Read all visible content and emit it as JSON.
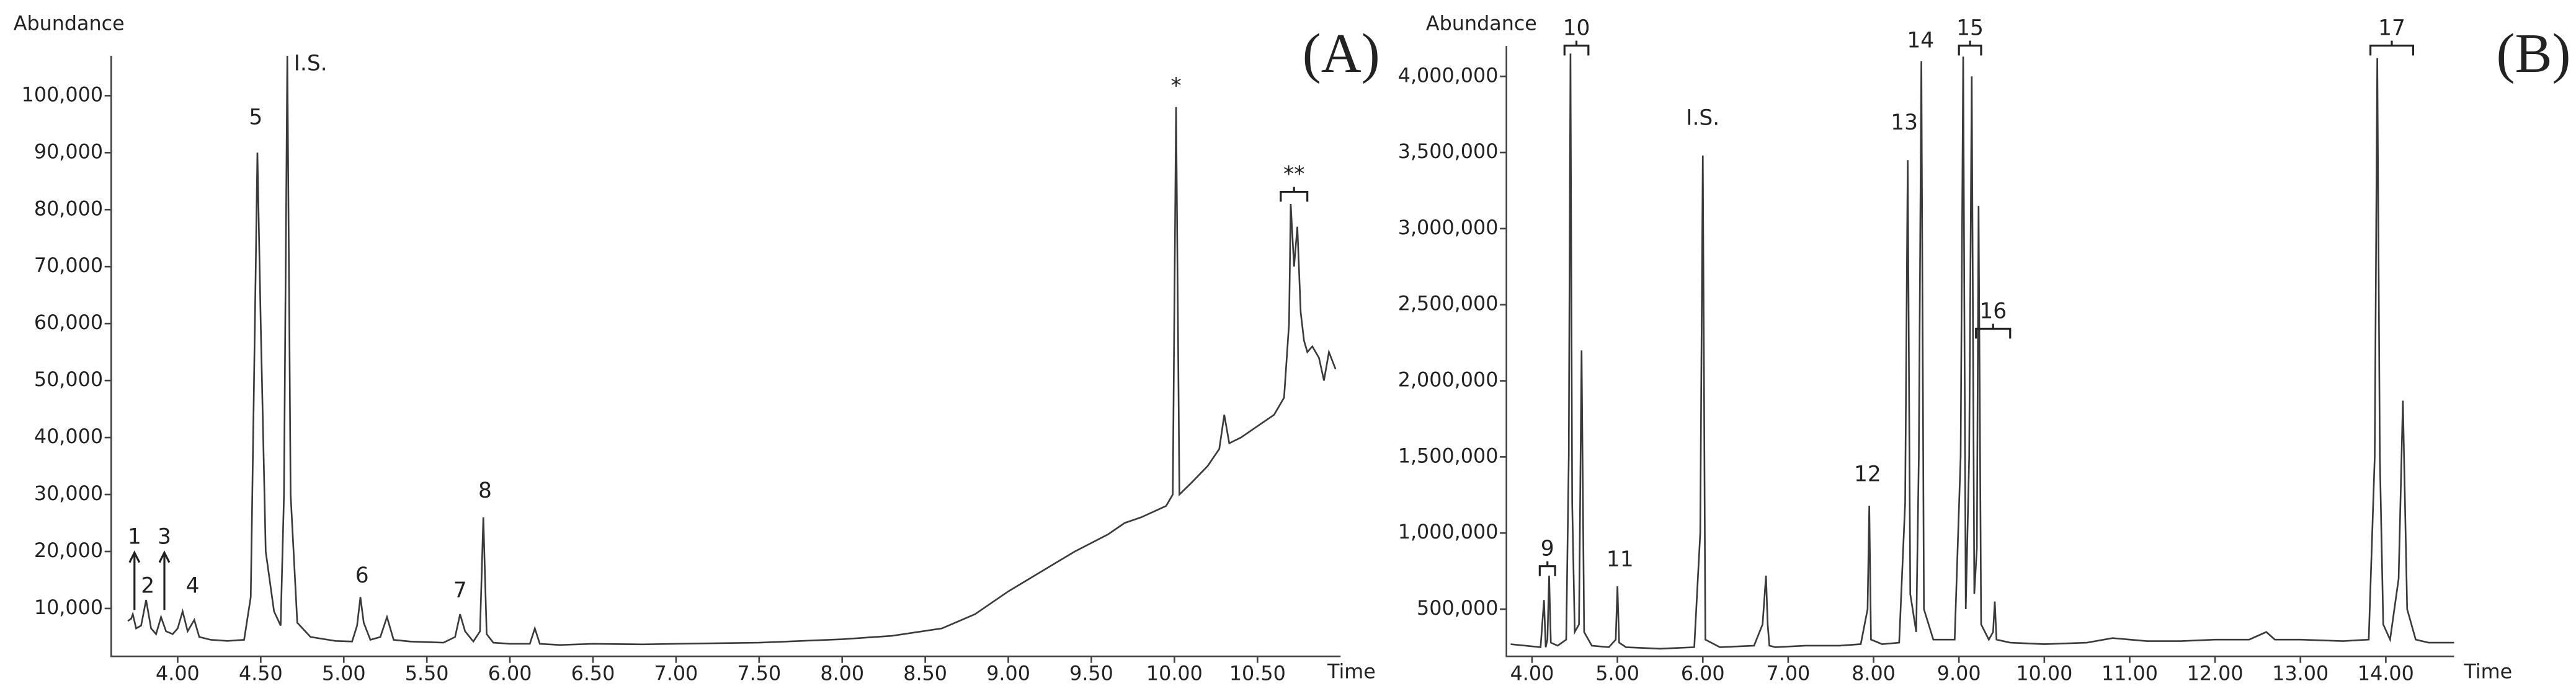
{
  "chart_data": [
    {
      "type": "line",
      "panel_label": "(A)",
      "y_label": "Abundance",
      "x_label": "Time",
      "xlim": [
        3.6,
        11.0
      ],
      "ylim": [
        1600,
        107000
      ],
      "xticks": [
        {
          "value": 4,
          "label": "4.00"
        },
        {
          "value": 4.5,
          "label": "4.50"
        },
        {
          "value": 5,
          "label": "5.00"
        },
        {
          "value": 5.5,
          "label": "5.50"
        },
        {
          "value": 6,
          "label": "6.00"
        },
        {
          "value": 6.5,
          "label": "6.50"
        },
        {
          "value": 7,
          "label": "7.00"
        },
        {
          "value": 7.5,
          "label": "7.50"
        },
        {
          "value": 8,
          "label": "8.00"
        },
        {
          "value": 8.5,
          "label": "8.50"
        },
        {
          "value": 9,
          "label": "9.00"
        },
        {
          "value": 9.5,
          "label": "9.50"
        },
        {
          "value": 10,
          "label": "10.00"
        },
        {
          "value": 10.5,
          "label": "10.50"
        }
      ],
      "yticks": [
        {
          "value": 10000,
          "label": "10,000"
        },
        {
          "value": 20000,
          "label": "20,000"
        },
        {
          "value": 30000,
          "label": "30,000"
        },
        {
          "value": 40000,
          "label": "40,000"
        },
        {
          "value": 50000,
          "label": "50,000"
        },
        {
          "value": 60000,
          "label": "60,000"
        },
        {
          "value": 70000,
          "label": "70,000"
        },
        {
          "value": 80000,
          "label": "80,000"
        },
        {
          "value": 90000,
          "label": "90,000"
        },
        {
          "value": 100000,
          "label": "100,000"
        }
      ],
      "annotations": [
        "1",
        "2",
        "3",
        "4",
        "5",
        "I.S.",
        "6",
        "7",
        "8",
        "*",
        "**"
      ],
      "series": [
        {
          "color": "#3a3a3a",
          "x": [
            3.7,
            3.72,
            3.73,
            3.75,
            3.78,
            3.81,
            3.84,
            3.87,
            3.9,
            3.93,
            3.97,
            4.0,
            4.03,
            4.06,
            4.1,
            4.13,
            4.2,
            4.3,
            4.4,
            4.44,
            4.47,
            4.48,
            4.5,
            4.53,
            4.58,
            4.62,
            4.64,
            4.66,
            4.68,
            4.72,
            4.8,
            4.95,
            5.05,
            5.08,
            5.1,
            5.12,
            5.16,
            5.22,
            5.26,
            5.3,
            5.4,
            5.6,
            5.67,
            5.7,
            5.73,
            5.78,
            5.82,
            5.84,
            5.86,
            5.9,
            6.0,
            6.12,
            6.15,
            6.18,
            6.3,
            6.5,
            6.8,
            7.0,
            7.5,
            8.0,
            8.3,
            8.6,
            8.8,
            9.0,
            9.2,
            9.4,
            9.6,
            9.7,
            9.8,
            9.95,
            9.99,
            10.01,
            10.03,
            10.1,
            10.2,
            10.27,
            10.3,
            10.33,
            10.4,
            10.5,
            10.6,
            10.66,
            10.69,
            10.7,
            10.72,
            10.74,
            10.76,
            10.78,
            10.8,
            10.83,
            10.87,
            10.9,
            10.93,
            10.97
          ],
          "values": [
            7800,
            8200,
            9000,
            6500,
            7000,
            11500,
            6500,
            5500,
            8500,
            6000,
            5500,
            6500,
            9500,
            6000,
            8000,
            5000,
            4500,
            4300,
            4500,
            12000,
            70000,
            90000,
            60000,
            20000,
            9500,
            7000,
            30000,
            107000,
            30000,
            7500,
            5000,
            4300,
            4200,
            7000,
            12000,
            7500,
            4500,
            5000,
            8500,
            4500,
            4200,
            4000,
            5000,
            9000,
            6000,
            4200,
            6000,
            26000,
            5500,
            4000,
            3800,
            3800,
            6500,
            3800,
            3600,
            3800,
            3700,
            3800,
            4000,
            4600,
            5200,
            6500,
            9000,
            13000,
            16500,
            20000,
            23000,
            25000,
            26000,
            28000,
            30000,
            98000,
            30000,
            32000,
            35000,
            38000,
            44000,
            39000,
            40000,
            42000,
            44000,
            47000,
            60000,
            81000,
            70000,
            77000,
            62000,
            57000,
            55000,
            56000,
            54000,
            50000,
            55000,
            52000
          ]
        }
      ]
    },
    {
      "type": "line",
      "panel_label": "(B)",
      "y_label": "Abundance",
      "x_label": "Time",
      "xlim": [
        3.7,
        14.8
      ],
      "ylim": [
        190000,
        4200000
      ],
      "xticks": [
        {
          "value": 4,
          "label": "4.00"
        },
        {
          "value": 5,
          "label": "5.00"
        },
        {
          "value": 6,
          "label": "6.00"
        },
        {
          "value": 7,
          "label": "7.00"
        },
        {
          "value": 8,
          "label": "8.00"
        },
        {
          "value": 9,
          "label": "9.00"
        },
        {
          "value": 10,
          "label": "10.00"
        },
        {
          "value": 11,
          "label": "11.00"
        },
        {
          "value": 12,
          "label": "12.00"
        },
        {
          "value": 13,
          "label": "13.00"
        },
        {
          "value": 14,
          "label": "14.00"
        }
      ],
      "yticks": [
        {
          "value": 500000,
          "label": "500,000"
        },
        {
          "value": 1000000,
          "label": "1,000,000"
        },
        {
          "value": 1500000,
          "label": "1,500,000"
        },
        {
          "value": 2000000,
          "label": "2,000,000"
        },
        {
          "value": 2500000,
          "label": "2,500,000"
        },
        {
          "value": 3000000,
          "label": "3,000,000"
        },
        {
          "value": 3500000,
          "label": "3,500,000"
        },
        {
          "value": 4000000,
          "label": "4,000,000"
        }
      ],
      "annotations": [
        "9",
        "10",
        "11",
        "I.S.",
        "12",
        "13",
        "14",
        "15",
        "16",
        "17"
      ],
      "series": [
        {
          "color": "#3a3a3a",
          "x": [
            3.75,
            4.1,
            4.14,
            4.16,
            4.18,
            4.2,
            4.22,
            4.3,
            4.4,
            4.43,
            4.45,
            4.47,
            4.5,
            4.55,
            4.58,
            4.61,
            4.7,
            4.9,
            4.98,
            5.0,
            5.02,
            5.1,
            5.5,
            5.9,
            5.97,
            6.0,
            6.03,
            6.2,
            6.6,
            6.7,
            6.74,
            6.76,
            6.78,
            6.85,
            7.2,
            7.6,
            7.85,
            7.93,
            7.95,
            7.97,
            8.1,
            8.3,
            8.37,
            8.4,
            8.43,
            8.5,
            8.53,
            8.56,
            8.59,
            8.7,
            8.95,
            9.02,
            9.05,
            9.08,
            9.12,
            9.15,
            9.18,
            9.21,
            9.23,
            9.26,
            9.35,
            9.4,
            9.42,
            9.44,
            9.6,
            10.0,
            10.5,
            10.8,
            11.2,
            11.6,
            12.0,
            12.4,
            12.6,
            12.7,
            13.0,
            13.5,
            13.8,
            13.87,
            13.9,
            13.93,
            13.97,
            14.05,
            14.15,
            14.2,
            14.25,
            14.35,
            14.5,
            14.8
          ],
          "values": [
            270000,
            250000,
            560000,
            250000,
            300000,
            720000,
            280000,
            260000,
            300000,
            1500000,
            4150000,
            1200000,
            350000,
            400000,
            2200000,
            350000,
            260000,
            250000,
            300000,
            650000,
            280000,
            250000,
            240000,
            250000,
            1000000,
            3480000,
            300000,
            250000,
            260000,
            400000,
            720000,
            400000,
            260000,
            250000,
            260000,
            260000,
            270000,
            500000,
            1180000,
            300000,
            270000,
            280000,
            1200000,
            3450000,
            600000,
            350000,
            1500000,
            4100000,
            500000,
            300000,
            300000,
            1500000,
            4130000,
            500000,
            1500000,
            4000000,
            600000,
            900000,
            3150000,
            400000,
            300000,
            350000,
            550000,
            300000,
            280000,
            270000,
            280000,
            310000,
            290000,
            290000,
            300000,
            300000,
            350000,
            300000,
            300000,
            290000,
            300000,
            1500000,
            4120000,
            1500000,
            400000,
            300000,
            700000,
            1870000,
            500000,
            300000,
            280000,
            280000
          ]
        }
      ]
    }
  ]
}
